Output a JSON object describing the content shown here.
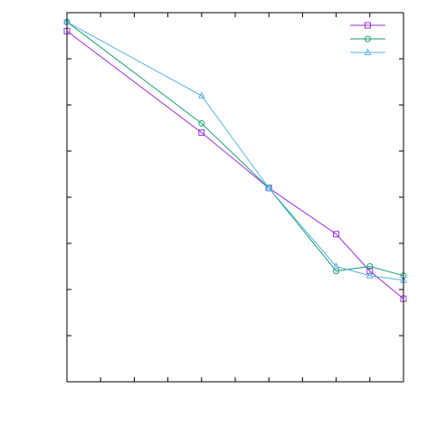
{
  "chart_data": {
    "type": "line",
    "title": "",
    "xlabel": "",
    "ylabel": "",
    "xlim": [
      0,
      10
    ],
    "ylim": [
      0,
      8
    ],
    "x_ticks": [
      0,
      1,
      2,
      3,
      4,
      5,
      6,
      7,
      8,
      9,
      10
    ],
    "y_ticks": [
      0,
      1,
      2,
      3,
      4,
      5,
      6,
      7,
      8
    ],
    "x_tick_labels": [],
    "y_tick_labels": [],
    "grid": false,
    "legend_position": "top-right",
    "series": [
      {
        "marker": "square",
        "color": "#9b30d9",
        "x": [
          0,
          4,
          6,
          8,
          9,
          10
        ],
        "y": [
          7.6,
          5.4,
          4.2,
          3.2,
          2.4,
          1.8
        ]
      },
      {
        "marker": "circle",
        "color": "#1a9e77",
        "x": [
          0,
          4,
          6,
          8,
          9,
          10
        ],
        "y": [
          7.8,
          5.6,
          4.2,
          2.4,
          2.5,
          2.3
        ]
      },
      {
        "marker": "triangle",
        "color": "#56b4e9",
        "x": [
          0,
          4,
          6,
          8,
          9,
          10
        ],
        "y": [
          7.8,
          6.2,
          4.2,
          2.5,
          2.3,
          2.2
        ]
      }
    ]
  }
}
